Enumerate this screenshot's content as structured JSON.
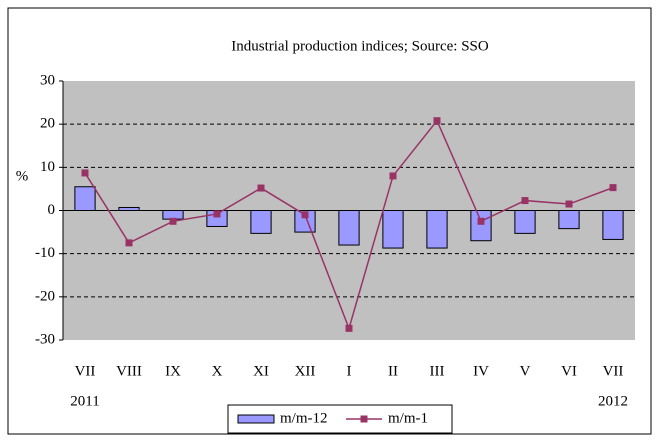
{
  "chart_data": {
    "type": "bar_line",
    "title": "Industrial production indices; Source: SSO",
    "y_label": "%",
    "categories": [
      "VII",
      "VIII",
      "IX",
      "X",
      "XI",
      "XII",
      "I",
      "II",
      "III",
      "IV",
      "V",
      "VI",
      "VII"
    ],
    "year_labels": [
      "2011",
      "2012"
    ],
    "series": [
      {
        "name": "m/m-12",
        "type": "bar",
        "color": "#9999ff",
        "values": [
          5.5,
          0.7,
          -2.0,
          -3.7,
          -5.3,
          -5.0,
          -8.0,
          -8.7,
          -8.7,
          -7.0,
          -5.3,
          -4.2,
          -6.7
        ]
      },
      {
        "name": "m/m-1",
        "type": "line",
        "color": "#993366",
        "values": [
          8.7,
          -7.5,
          -2.5,
          -0.8,
          5.2,
          -1.0,
          -27.3,
          8.0,
          20.8,
          -2.5,
          2.3,
          1.5,
          5.3
        ]
      }
    ],
    "ylim": [
      -30,
      30
    ],
    "yticks": [
      -30,
      -20,
      -10,
      0,
      10,
      20,
      30
    ],
    "grid": true,
    "legend": "bottom"
  }
}
